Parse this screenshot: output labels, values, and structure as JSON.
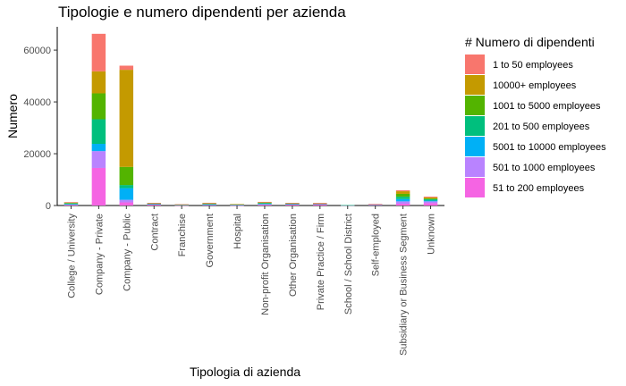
{
  "chart_data": {
    "type": "bar",
    "stacked": true,
    "title": "Tipologie e numero dipendenti per azienda",
    "xlabel": "Tipologia di azienda",
    "ylabel": "Numero",
    "ylim": [
      0,
      69000
    ],
    "yticks": [
      0,
      20000,
      40000,
      60000
    ],
    "ytick_labels": [
      "0",
      "20000",
      "40000",
      "60000"
    ],
    "grid": false,
    "legend_title": "# Numero di dipendenti",
    "legend_position": "right",
    "categories": [
      "College / University",
      "Company - Private",
      "Company - Public",
      "Contract",
      "Franchise",
      "Government",
      "Hospital",
      "Non-profit Organisation",
      "Other Organisation",
      "Private Practice / Firm",
      "School / School District",
      "Self-employed",
      "Subsidiary or Business Segment",
      "Unknown"
    ],
    "series": [
      {
        "name": "51 to 200 employees",
        "color": "#F564E3",
        "values": [
          200,
          14500,
          1200,
          400,
          100,
          200,
          100,
          300,
          350,
          550,
          100,
          350,
          700,
          900
        ]
      },
      {
        "name": "501 to 1000 employees",
        "color": "#B983FF",
        "values": [
          200,
          6500,
          1000,
          150,
          100,
          150,
          100,
          250,
          200,
          100,
          0,
          50,
          900,
          700
        ]
      },
      {
        "name": "5001 to 10000 employees",
        "color": "#00B0F6",
        "values": [
          150,
          2800,
          4500,
          50,
          30,
          100,
          150,
          100,
          50,
          30,
          0,
          0,
          900,
          300
        ]
      },
      {
        "name": "201 to 500 employees",
        "color": "#00BF7D",
        "values": [
          250,
          9500,
          1200,
          150,
          100,
          200,
          100,
          300,
          150,
          100,
          50,
          50,
          900,
          500
        ]
      },
      {
        "name": "1001 to 5000 employees",
        "color": "#53B400",
        "values": [
          200,
          10000,
          7000,
          100,
          50,
          150,
          50,
          200,
          100,
          50,
          0,
          0,
          1100,
          300
        ]
      },
      {
        "name": "10000+ employees",
        "color": "#C49A00",
        "values": [
          200,
          8500,
          37500,
          100,
          50,
          150,
          50,
          150,
          100,
          50,
          0,
          0,
          1000,
          400
        ]
      },
      {
        "name": "1 to 50 employees",
        "color": "#F8766D",
        "values": [
          100,
          14500,
          1600,
          50,
          50,
          100,
          0,
          100,
          50,
          100,
          0,
          150,
          400,
          300
        ]
      }
    ],
    "legend_order": [
      "1 to 50 employees",
      "10000+ employees",
      "1001 to 5000 employees",
      "201 to 500 employees",
      "5001 to 10000 employees",
      "501 to 1000 employees",
      "51 to 200 employees"
    ]
  }
}
